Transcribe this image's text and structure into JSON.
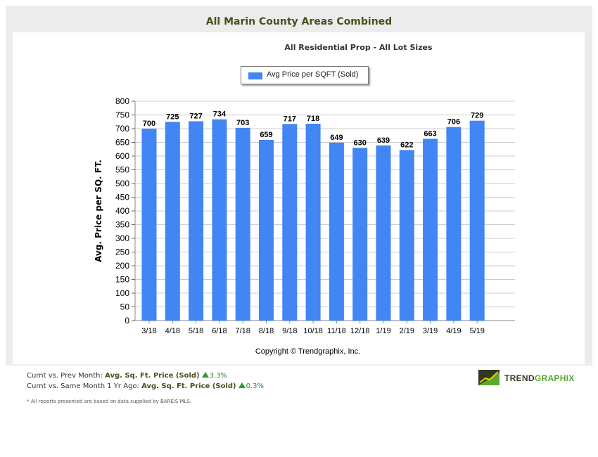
{
  "colors": {
    "bar": "#4285f4",
    "grid": "#cccccc",
    "title": "#4d4d1f",
    "up": "#2e9b2e"
  },
  "header": {
    "title": "All Marin County Areas Combined",
    "subtitle": "All Residential Prop - All Lot Sizes"
  },
  "chart_data": {
    "type": "bar",
    "categories": [
      "3/18",
      "4/18",
      "5/18",
      "6/18",
      "7/18",
      "8/18",
      "9/18",
      "10/18",
      "11/18",
      "12/18",
      "1/19",
      "2/19",
      "3/19",
      "4/19",
      "5/19"
    ],
    "series": [
      {
        "name": "Avg Price per SQFT (Sold)",
        "values": [
          700,
          725,
          727,
          734,
          703,
          659,
          717,
          718,
          649,
          630,
          639,
          622,
          663,
          706,
          729
        ]
      }
    ],
    "ylabel": "Avg. Price per SQ. FT.",
    "xlabel": "",
    "ylim": [
      0,
      800
    ],
    "yticks": [
      0,
      50,
      100,
      150,
      200,
      250,
      300,
      350,
      400,
      450,
      500,
      550,
      600,
      650,
      700,
      750,
      800
    ],
    "grid": true,
    "legend_position": "top-center",
    "data_labels": true
  },
  "copyright": "Copyright © Trendgraphix, Inc.",
  "stats": {
    "row1": {
      "label": "Curnt vs. Prev Month:",
      "metric": "Avg. Sq. Ft. Price (Sold)",
      "change": "3.3%"
    },
    "row2": {
      "label": "Curnt vs. Same Month 1 Yr Ago:",
      "metric": "Avg. Sq. Ft. Price (Sold)",
      "change": "0.3%"
    }
  },
  "footnote": "* All reports presented are based on data supplied by BAREIS MLS.",
  "logo": {
    "part1": "TREND",
    "part2": "GRAPHIX",
    "icon": "trend-chart-logo-icon"
  }
}
